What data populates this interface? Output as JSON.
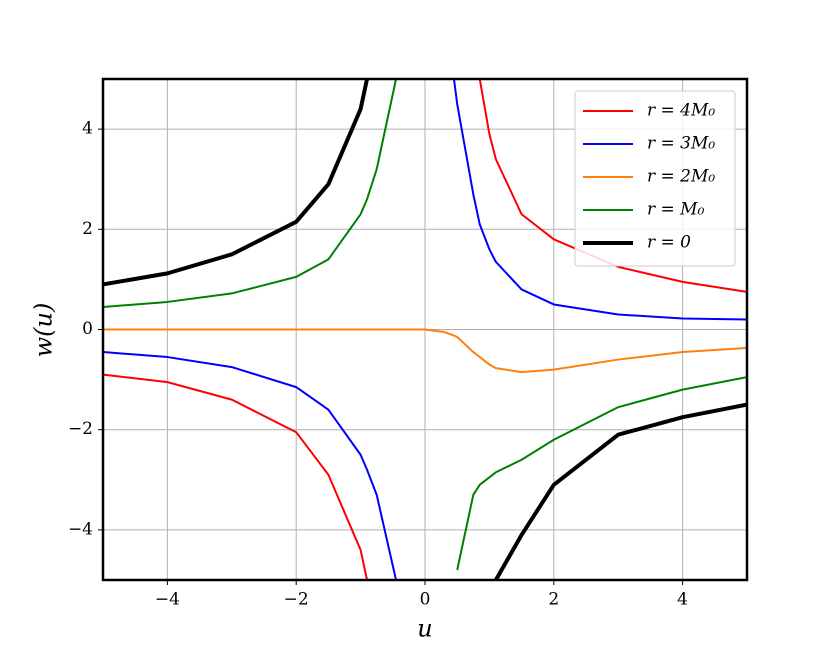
{
  "chart_data": {
    "type": "line",
    "x_label": "u",
    "y_label": "w(u)",
    "x": [
      -5,
      -4,
      -3,
      -2,
      -1.5,
      -1,
      -0.9,
      -0.75,
      -0.45,
      0,
      0.3,
      0.45,
      0.5,
      0.75,
      0.85,
      1,
      1.1,
      1.5,
      2,
      3,
      4,
      5
    ],
    "series": [
      {
        "name": "r = 4M₀",
        "color": "#ff0000",
        "width": 2,
        "values": [
          -0.9,
          -1.05,
          -1.4,
          -2.05,
          -2.9,
          -4.4,
          -5,
          null,
          null,
          null,
          null,
          null,
          null,
          null,
          5,
          3.9,
          3.4,
          2.3,
          1.8,
          1.25,
          0.95,
          0.75
        ]
      },
      {
        "name": "r = 3M₀",
        "color": "#0000ff",
        "width": 2,
        "values": [
          -0.45,
          -0.55,
          -0.75,
          -1.15,
          -1.6,
          -2.5,
          -2.8,
          -3.3,
          -5,
          null,
          null,
          5,
          4.5,
          2.7,
          2.1,
          1.6,
          1.35,
          0.8,
          0.5,
          0.3,
          0.22,
          0.2
        ]
      },
      {
        "name": "r = 2M₀",
        "color": "#ff7f0e",
        "width": 2,
        "values": [
          0,
          0,
          0,
          0,
          0,
          0,
          0,
          0,
          0,
          0,
          -0.05,
          -0.12,
          -0.15,
          -0.45,
          -0.55,
          -0.7,
          -0.77,
          -0.85,
          -0.8,
          -0.6,
          -0.45,
          -0.37
        ]
      },
      {
        "name": "r = M₀",
        "color": "#008000",
        "width": 2,
        "values": [
          0.45,
          0.55,
          0.72,
          1.05,
          1.4,
          2.3,
          2.6,
          3.2,
          5,
          null,
          null,
          null,
          -4.8,
          -3.3,
          -3.1,
          -2.95,
          -2.85,
          -2.6,
          -2.2,
          -1.55,
          -1.2,
          -0.95
        ]
      },
      {
        "name": "r = 0",
        "color": "#000000",
        "width": 4,
        "values": [
          0.9,
          1.12,
          1.5,
          2.15,
          2.9,
          4.4,
          5,
          null,
          null,
          null,
          null,
          null,
          null,
          null,
          null,
          null,
          -5,
          -4.1,
          -3.1,
          -2.1,
          -1.75,
          -1.5
        ]
      }
    ],
    "xlim": [
      -5,
      5
    ],
    "ylim": [
      -5,
      5
    ],
    "xticks": [
      {
        "value": -4,
        "label": "−4"
      },
      {
        "value": -2,
        "label": "−2"
      },
      0,
      2,
      4
    ],
    "yticks": [
      {
        "value": -4,
        "label": "−4"
      },
      {
        "value": -2,
        "label": "−2"
      },
      0,
      2,
      4
    ],
    "grid": true,
    "legend": "upper right"
  }
}
